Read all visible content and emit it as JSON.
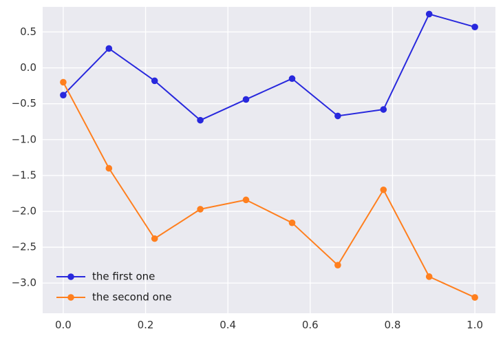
{
  "chart_data": {
    "type": "line",
    "title": "",
    "xlabel": "",
    "ylabel": "",
    "x": [
      0.0,
      0.111,
      0.222,
      0.333,
      0.444,
      0.556,
      0.667,
      0.778,
      0.889,
      1.0
    ],
    "series": [
      {
        "name": "the first one",
        "color": "#2828dd",
        "marker": "circle",
        "values": [
          -0.38,
          0.27,
          -0.18,
          -0.73,
          -0.44,
          -0.15,
          -0.67,
          -0.58,
          0.75,
          0.57
        ]
      },
      {
        "name": "the second one",
        "color": "#ff7f1e",
        "marker": "circle",
        "values": [
          -0.2,
          -1.4,
          -2.38,
          -1.97,
          -1.84,
          -2.16,
          -2.75,
          -1.7,
          -2.91,
          -3.2
        ]
      }
    ],
    "xticks": [
      0.0,
      0.2,
      0.4,
      0.6,
      0.8,
      1.0
    ],
    "xtick_labels": [
      "0.0",
      "0.2",
      "0.4",
      "0.6",
      "0.8",
      "1.0"
    ],
    "yticks": [
      0.5,
      0.0,
      -0.5,
      -1.0,
      -1.5,
      -2.0,
      -2.5,
      -3.0
    ],
    "ytick_labels": [
      "0.5",
      "0.0",
      "−0.5",
      "−1.0",
      "−1.5",
      "−2.0",
      "−2.5",
      "−3.0"
    ],
    "xlim": [
      -0.05,
      1.05
    ],
    "ylim": [
      -3.42,
      0.85
    ],
    "grid": true,
    "legend_position": "lower left",
    "plot_bg": "#eaeaf0",
    "grid_color": "#ffffff",
    "tick_color": "#333333",
    "tick_font_size": 15,
    "legend_font_size": 15
  }
}
